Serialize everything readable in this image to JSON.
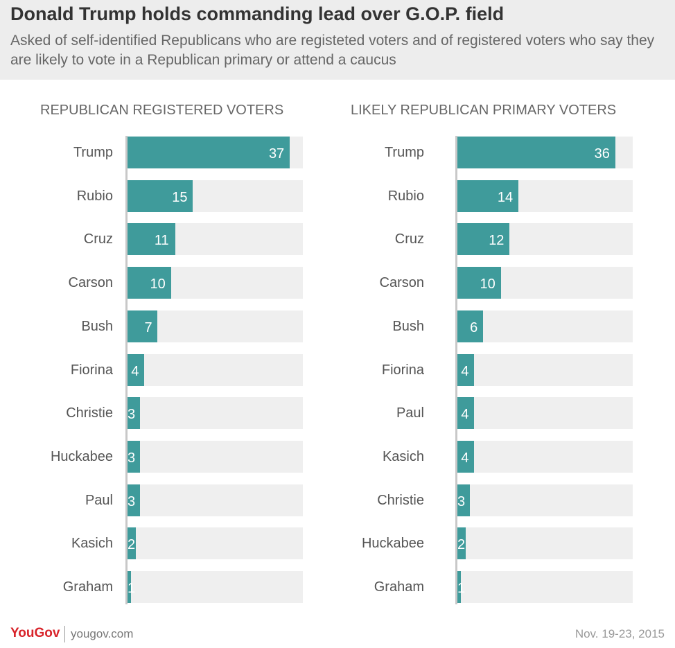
{
  "title": "Donald Trump holds commanding lead over G.O.P. field",
  "subtitle": "Asked of self-identified Republicans who are registeted voters and of registered voters who say they are likely to vote in a Republican primary or attend a caucus",
  "brand": {
    "logo_you": "YouGov",
    "logo_gov": "",
    "site": "yougov.com",
    "date": "Nov. 19-23, 2015"
  },
  "colors": {
    "bar": "#3f9b9b",
    "track": "#efefef",
    "header_bg": "#ededed",
    "logo": "#d8232a"
  },
  "chart_data": [
    {
      "type": "bar",
      "orientation": "horizontal",
      "title": "REPUBLICAN REGISTERED VOTERS",
      "categories": [
        "Trump",
        "Rubio",
        "Cruz",
        "Carson",
        "Bush",
        "Fiorina",
        "Christie",
        "Huckabee",
        "Paul",
        "Kasich",
        "Graham"
      ],
      "values": [
        37,
        15,
        11,
        10,
        7,
        4,
        3,
        3,
        3,
        2,
        1
      ],
      "xlim": [
        0,
        40
      ]
    },
    {
      "type": "bar",
      "orientation": "horizontal",
      "title": "LIKELY REPUBLICAN PRIMARY VOTERS",
      "categories": [
        "Trump",
        "Rubio",
        "Cruz",
        "Carson",
        "Bush",
        "Fiorina",
        "Paul",
        "Kasich",
        "Christie",
        "Huckabee",
        "Graham"
      ],
      "values": [
        36,
        14,
        12,
        10,
        6,
        4,
        4,
        4,
        3,
        2,
        1
      ],
      "xlim": [
        0,
        40
      ]
    }
  ]
}
